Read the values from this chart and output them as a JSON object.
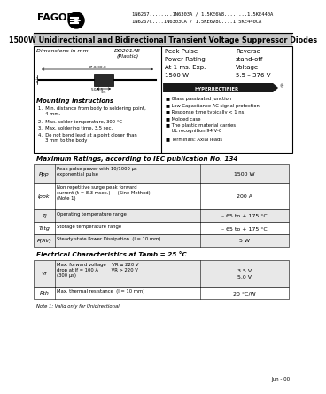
{
  "title_line1": "1N6267........1N6303A / 1.5KE6V8........1.5KE440A",
  "title_line2": "1N6267C....1N6303CA / 1.5KE6V8C....1.5KE440CA",
  "main_title": "1500W Unidirectional and Bidirectional Transient Voltage Suppressor Diodes",
  "fagor_text": "FAGOR",
  "section1_header": "Dimensions in mm.",
  "package_name": "DO201AE\n(Plastic)",
  "peak_pulse_text": "Peak Pulse\nPower Rating\nAt 1 ms. Exp.\n1500 W",
  "reverse_text": "Reverse\nstand-off\nVoltage\n5.5 – 376 V",
  "hyperrectifier_text": "HYPERRECTIFIER",
  "mounting_title": "Mounting instructions",
  "mounting_items": [
    "1.  Min. distance from body to soldering point,\n     4 mm.",
    "2.  Max. solder temperature, 300 °C",
    "3.  Max. soldering time, 3.5 sec.",
    "4.  Do not bend lead at a point closer than\n     3 mm to the body"
  ],
  "features_items": [
    "Glass passivated junction",
    "Low Capacitance AC signal protection",
    "Response time typically < 1 ns.",
    "Molded case",
    "The plastic material carries\n    UL recognition 94 V-0",
    "Terminals: Axial leads"
  ],
  "max_ratings_title": "Maximum Ratings, according to IEC publication No. 134",
  "max_ratings_rows": [
    [
      "Ppp",
      "Peak pulse power with 10/1000 μs\nexponential pulse",
      "1500 W"
    ],
    [
      "Ippk",
      "Non repetitive surge peak forward\ncurrent (t = 8.3 msec.)     (Sine Method)\n(Note 1)",
      "200 A"
    ],
    [
      "Tj",
      "Operating temperature range",
      "– 65 to + 175 °C"
    ],
    [
      "Tstg",
      "Storage temperature range",
      "– 65 to + 175 °C"
    ],
    [
      "P(AV)",
      "Steady state Power Dissipation  (l = 10 mm)",
      "5 W"
    ]
  ],
  "elec_title": "Electrical Characteristics at Tamb = 25 °C",
  "elec_rows": [
    [
      "Vf",
      "Max. forward voltage    VR ≤ 220 V\ndrop at If = 100 A         VR > 220 V\n(300 μs)",
      "3.5 V\n5.0 V"
    ],
    [
      "Rth",
      "Max. thermal resistance  (l = 10 mm)",
      "20 °C/W"
    ]
  ],
  "note_text": "Note 1: Valid only for Unidirectional",
  "date_text": "Jun - 00",
  "bg_color": "#ffffff",
  "title_bg": "#c8c8c8",
  "table_stripe": "#e8e8e8"
}
